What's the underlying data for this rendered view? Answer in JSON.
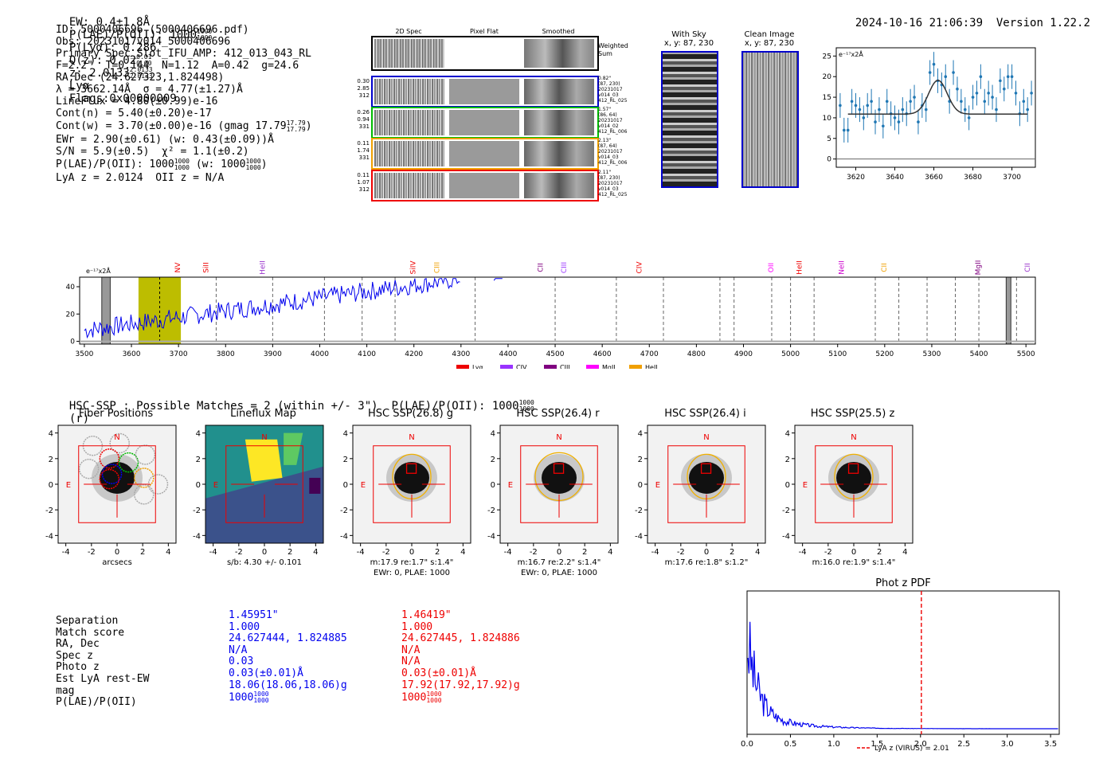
{
  "header": {
    "ew": "EW: 0.4±1.8Å",
    "plae": "P(LAE)/P(OII): 1000",
    "plae_sup": "1000",
    "plae_sub": "1000",
    "plya": "P(Lyα): 0.286",
    "qz": "Q(z): 0.02",
    "qz_sup": "0.01",
    "qz_sub": "0.00",
    "z": "z: 2.0133",
    "z_sup": "2.0133",
    "z_sub": "2.0133",
    "z_line": "Lyα",
    "flags": "Flags:0x00000009",
    "date": "2024-10-16 21:06:39",
    "version": "Version 1.22.2"
  },
  "info": [
    "ID: 5000406696 (5000406696.pdf)",
    "Obs: 20231017v014_5000406696",
    "Primary Spec_Slot_IFU_AMP: 412_013_043_RL",
    "F=2.2\"  T=0.144  N=1.12  A=0.42  g=24.6",
    "RA,Dec (24.627323,1.824498)",
    "λ = 3662.14Å  σ = 4.77(±1.27)Å",
    "LineFlux = 4.80(±0.99)e-16",
    "Cont(n) = 5.40(±0.20)e-17",
    "Cont(w) = 3.70(±0.00)e-16 (gmag 17.79",
    "EWr = 2.90(±0.61) (w: 0.43(±0.09))Å",
    "S/N = 5.9(±0.5)  χ² = 1.1(±0.2)",
    "P(LAE)/P(OII): 1000",
    "LyA z = 2.0124  OII z = N/A"
  ],
  "info_extras": {
    "gmag_sup": "17.79",
    "gmag_sub": "17.79",
    "plae_sup": "1000",
    "plae_sub": "1000",
    "plae_w": "(w: 1000",
    "plae_w_sup": "1000",
    "plae_w_sub": "1000"
  },
  "cutouts": {
    "col_2d": "2D Spec",
    "col_flat": "Pixel Flat",
    "col_smooth": "Smoothed",
    "weighted": "Weighted Sum",
    "rows": [
      {
        "left": "0.30\n2.85\n312",
        "right": "0.82\"\n(87, 230)\n20231017\nv014_03\n412_RL_025",
        "color": "#0000cc"
      },
      {
        "left": "0.26\n0.94\n331",
        "right": "1.57\"\n(86, 64)\n20231017\nv014_02\n412_RL_006",
        "color": "#00bb00"
      },
      {
        "left": "0.11\n1.74\n331",
        "right": "2.13\"\n(87, 64)\n20231017\nv014_03\n412_RL_006",
        "color": "#f0a000"
      },
      {
        "left": "0.11\n1.07\n312",
        "right": "2.11\"\n(87, 230)\n20231017\nv014_03\n412_RL_025",
        "color": "#ee0000"
      }
    ],
    "with_sky": "With Sky",
    "with_sky_xy": "x, y: 87, 230",
    "clean": "Clean Image",
    "clean_xy": "x, y: 87, 230"
  },
  "chart_data": [
    {
      "type": "line",
      "title": "",
      "ylabel": "e⁻¹⁷x2Å",
      "xlabel": "",
      "xlim": [
        3610,
        3712
      ],
      "ylim": [
        -2,
        27
      ],
      "xticks": [
        3620,
        3640,
        3660,
        3680,
        3700
      ],
      "yticks": [
        0,
        5,
        10,
        15,
        20,
        25
      ],
      "series": [
        {
          "name": "data",
          "x": [
            3612,
            3614,
            3616,
            3618,
            3620,
            3622,
            3624,
            3626,
            3628,
            3630,
            3632,
            3634,
            3636,
            3638,
            3640,
            3642,
            3644,
            3646,
            3648,
            3650,
            3652,
            3654,
            3656,
            3658,
            3660,
            3662,
            3664,
            3666,
            3668,
            3670,
            3672,
            3674,
            3676,
            3678,
            3680,
            3682,
            3684,
            3686,
            3688,
            3690,
            3692,
            3694,
            3696,
            3698,
            3700,
            3702,
            3704,
            3706,
            3708,
            3710
          ],
          "y": [
            13,
            7,
            7,
            14,
            13,
            12,
            10,
            13,
            14,
            9,
            12,
            8,
            14,
            11,
            10,
            9,
            12,
            11,
            14,
            15,
            9,
            13,
            12,
            21,
            23,
            19,
            18,
            20,
            14,
            21,
            17,
            14,
            12,
            10,
            15,
            16,
            20,
            14,
            16,
            15,
            12,
            19,
            17,
            20,
            20,
            16,
            11,
            14,
            12,
            16
          ]
        },
        {
          "name": "fit",
          "center": 3662.1,
          "sigma": 4.77,
          "amplitude": 8.2,
          "baseline": 10.9
        }
      ]
    },
    {
      "type": "line",
      "title": "",
      "ylabel": "e⁻¹⁷x2Å",
      "xlim": [
        3490,
        5520
      ],
      "ylim": [
        -2,
        47
      ],
      "xticks": [
        3500,
        3600,
        3700,
        3800,
        3900,
        4000,
        4100,
        4200,
        4300,
        4400,
        4500,
        4600,
        4700,
        4800,
        4900,
        5000,
        5100,
        5200,
        5300,
        5400,
        5500
      ],
      "yticks": [
        0,
        20,
        40
      ],
      "lines": [
        "NV",
        "SiII",
        "HeII",
        "SiIV",
        "CIII",
        "CII",
        "CIII",
        "CIV",
        "OII",
        "HeII",
        "NeII",
        "CII",
        "MgII",
        "CII"
      ],
      "line_positions": [
        3700,
        3760,
        3880,
        4200,
        4250,
        4470,
        4520,
        4680,
        4960,
        5020,
        5110,
        5200,
        5400,
        5580
      ],
      "line_colors": [
        "#ee0000",
        "#ee0000",
        "#9933cc",
        "#ee0000",
        "#f0a000",
        "#800080",
        "#9933ff",
        "#ee0000",
        "#ff00ff",
        "#ee0000",
        "#cc00cc",
        "#f0a000",
        "#800080",
        "#9933cc"
      ],
      "dashed_x": [
        3780,
        3900,
        4010,
        4090,
        4160,
        4330,
        4500,
        4630,
        4730,
        4850,
        4880,
        4960,
        5000,
        5050,
        5180,
        5230,
        5290,
        5350,
        5400,
        5480
      ],
      "legend": [
        "Lyα",
        "CIV",
        "CIII",
        "MgII",
        "HeII"
      ],
      "legend_colors": [
        "#ee0000",
        "#9933ff",
        "#800080",
        "#ff00ff",
        "#f0a000"
      ]
    },
    {
      "type": "line",
      "title": "Phot z PDF",
      "xlim": [
        0,
        3.6
      ],
      "xticks": [
        0.0,
        0.5,
        1.0,
        1.5,
        2.0,
        2.5,
        3.0,
        3.5
      ],
      "marker": 2.01,
      "legend": "LyA z (VIRUS) = 2.01"
    }
  ],
  "hsc": {
    "title": "HSC-SSP : Possible Matches = 2 (within +/- 3\")  P(LAE)/P(OII): 1000",
    "title_sup": "1000",
    "title_sub": "1000",
    "title_suffix": "(r)",
    "panels": [
      {
        "title": "Fiber Positions",
        "caption": "arcsecs",
        "caption2": ""
      },
      {
        "title": "Lineflux Map",
        "caption": "s/b: 4.30 +/- 0.101",
        "caption2": ""
      },
      {
        "title": "HSC SSP(26.8) g",
        "caption": "m:17.9  re:1.7\"  s:1.4\"",
        "caption2": "EWr: 0, PLAE: 1000"
      },
      {
        "title": "HSC SSP(26.4) r",
        "caption": "m:16.7  re:2.2\"  s:1.4\"",
        "caption2": "EWr: 0, PLAE: 1000"
      },
      {
        "title": "HSC SSP(26.4) i",
        "caption": "m:17.6  re:1.8\"  s:1.2\"",
        "caption2": ""
      },
      {
        "title": "HSC SSP(25.5) z",
        "caption": "m:16.0  re:1.9\"  s:1.4\"",
        "caption2": ""
      }
    ],
    "north": "N",
    "east": "E",
    "axis_ticks": [
      "-4",
      "-2",
      "0",
      "2",
      "4"
    ]
  },
  "table": {
    "labels": [
      "Separation",
      "Match score",
      "RA, Dec",
      "Spec z",
      "Photo z",
      "Est LyA rest-EW",
      "mag",
      "P(LAE)/P(OII)"
    ],
    "col1": [
      "1.45951\"",
      "1.000",
      "24.627444, 1.824885",
      "N/A",
      "0.03",
      "0.03(±0.01)Å",
      "18.06(18.06,18.06)g",
      "1000"
    ],
    "col2": [
      "1.46419\"",
      "1.000",
      "24.627445, 1.824886",
      "N/A",
      "N/A",
      "0.03(±0.01)Å",
      "17.92(17.92,17.92)g",
      "1000"
    ],
    "plae_sup": "1000",
    "plae_sub": "1000"
  }
}
